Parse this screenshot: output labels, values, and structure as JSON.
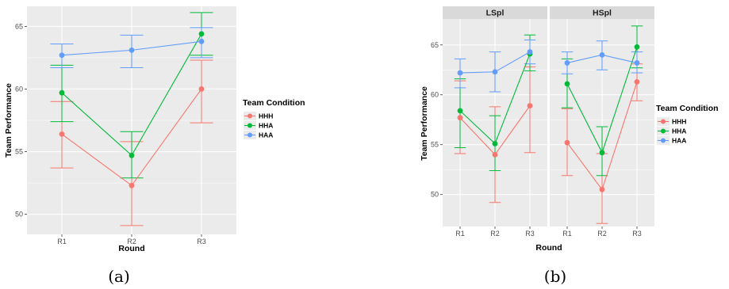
{
  "colors": {
    "HHH": "#F8766D",
    "HHA": "#00BA38",
    "HAA": "#619CFF",
    "panel_bg": "#EBEBEB",
    "strip_bg": "#D9D9D9",
    "grid": "#FFFFFF"
  },
  "chart_data": [
    {
      "type": "line",
      "caption": "(a)",
      "xlabel": "Round",
      "ylabel": "Team Performance",
      "categories": [
        "R1",
        "R2",
        "R3"
      ],
      "ylim": [
        48.4,
        66.6
      ],
      "yticks": [
        50,
        55,
        60,
        65
      ],
      "legend": {
        "title": "Team Condition",
        "position": "right",
        "entries": [
          "HHH",
          "HHA",
          "HAA"
        ]
      },
      "grid": true,
      "series": [
        {
          "name": "HHH",
          "values": [
            56.4,
            52.3,
            60.0
          ],
          "lower": [
            53.7,
            49.1,
            57.3
          ],
          "upper": [
            59.0,
            55.8,
            62.3
          ]
        },
        {
          "name": "HHA",
          "values": [
            59.7,
            54.7,
            64.4
          ],
          "lower": [
            57.4,
            52.9,
            62.7
          ],
          "upper": [
            61.9,
            56.6,
            66.1
          ]
        },
        {
          "name": "HAA",
          "values": [
            62.7,
            63.1,
            63.8
          ],
          "lower": [
            61.7,
            61.7,
            62.5
          ],
          "upper": [
            63.6,
            64.3,
            64.9
          ]
        }
      ]
    },
    {
      "type": "line",
      "caption": "(b)",
      "xlabel": "Round",
      "ylabel": "Team Performance",
      "categories": [
        "R1",
        "R2",
        "R3"
      ],
      "ylim": [
        46.8,
        67.6
      ],
      "yticks": [
        50,
        55,
        60,
        65
      ],
      "legend": {
        "title": "Team Condition",
        "position": "right",
        "entries": [
          "HHH",
          "HHA",
          "HAA"
        ]
      },
      "grid": true,
      "facets": [
        {
          "label": "LSpl",
          "series": [
            {
              "name": "HHH",
              "values": [
                57.7,
                54.0,
                58.9
              ],
              "lower": [
                54.1,
                49.2,
                54.2
              ],
              "upper": [
                61.4,
                58.8,
                62.8
              ]
            },
            {
              "name": "HHA",
              "values": [
                58.4,
                55.1,
                64.1
              ],
              "lower": [
                54.7,
                52.4,
                62.4
              ],
              "upper": [
                61.6,
                57.9,
                66.0
              ]
            },
            {
              "name": "HAA",
              "values": [
                62.2,
                62.3,
                64.3
              ],
              "lower": [
                60.7,
                60.3,
                63.1
              ],
              "upper": [
                63.6,
                64.3,
                65.5
              ]
            }
          ]
        },
        {
          "label": "HSpl",
          "series": [
            {
              "name": "HHH",
              "values": [
                55.2,
                50.5,
                61.3
              ],
              "lower": [
                51.9,
                47.1,
                59.4
              ],
              "upper": [
                58.6,
                54.1,
                63.1
              ]
            },
            {
              "name": "HHA",
              "values": [
                61.1,
                54.2,
                64.8
              ],
              "lower": [
                58.7,
                51.9,
                62.7
              ],
              "upper": [
                63.6,
                56.8,
                66.9
              ]
            },
            {
              "name": "HAA",
              "values": [
                63.2,
                64.0,
                63.2
              ],
              "lower": [
                62.1,
                62.5,
                62.2
              ],
              "upper": [
                64.3,
                65.4,
                64.3
              ]
            }
          ]
        }
      ]
    }
  ]
}
